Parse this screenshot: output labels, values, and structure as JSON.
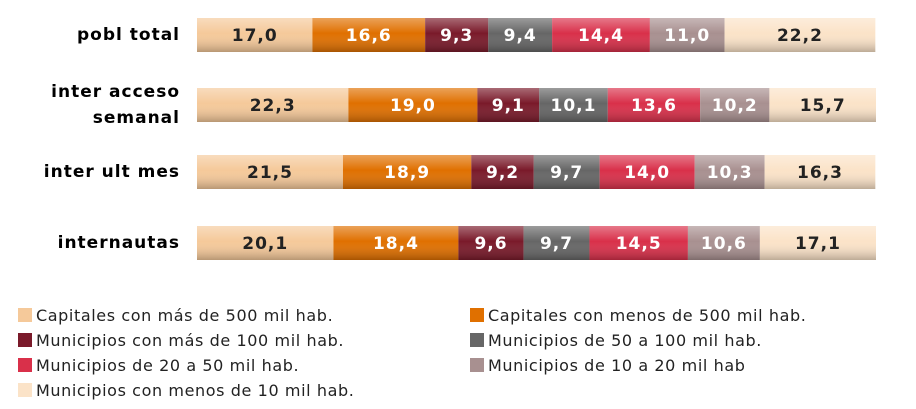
{
  "chart_data": {
    "type": "stacked-bar-horizontal",
    "categories": [
      "pobl total",
      "inter acceso semanal",
      "inter ult mes",
      "internautas"
    ],
    "xlim": [
      0,
      100
    ],
    "series": [
      {
        "name": "Capitales con más de 500 mil hab.",
        "color": "#f5c99a",
        "values": [
          17.0,
          22.3,
          21.5,
          20.1
        ],
        "value_labels": [
          "17,0",
          "22,3",
          "21,5",
          "20,1"
        ]
      },
      {
        "name": "Capitales con menos de 500 mil hab.",
        "color": "#e07000",
        "values": [
          16.6,
          19.0,
          18.9,
          18.4
        ],
        "value_labels": [
          "16,6",
          "19,0",
          "18,9",
          "18,4"
        ]
      },
      {
        "name": "Municipios con más de 100 mil hab.",
        "color": "#7a1a2a",
        "values": [
          9.3,
          9.1,
          9.2,
          9.6
        ],
        "value_labels": [
          "9,3",
          "9,1",
          "9,2",
          "9,6"
        ]
      },
      {
        "name": "Municipios de 50 a 100 mil hab.",
        "color": "#666666",
        "values": [
          9.4,
          10.1,
          9.7,
          9.7
        ],
        "value_labels": [
          "9,4",
          "10,1",
          "9,7",
          "9,7"
        ]
      },
      {
        "name": "Municipios de 20 a 50 mil hab.",
        "color": "#d9304a",
        "values": [
          14.4,
          13.6,
          14.0,
          14.5
        ],
        "value_labels": [
          "14,4",
          "13,6",
          "14,0",
          "14,5"
        ]
      },
      {
        "name": "Municipios de 10 a 20 mil hab",
        "color": "#a89090",
        "values": [
          11.0,
          10.2,
          10.3,
          10.6
        ],
        "value_labels": [
          "11,0",
          "10,2",
          "10,3",
          "10,6"
        ]
      },
      {
        "name": "Municipios con menos de 10 mil hab.",
        "color": "#fbe3c8",
        "values": [
          22.2,
          15.7,
          16.3,
          17.1
        ],
        "value_labels": [
          "22,2",
          "15,7",
          "16,3",
          "17,1"
        ]
      }
    ]
  }
}
